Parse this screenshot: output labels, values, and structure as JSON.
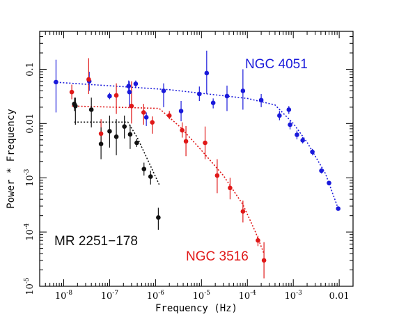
{
  "chart_data": {
    "type": "scatter",
    "title": "",
    "xlabel": "Frequency (Hz)",
    "ylabel": "Power * Frequency",
    "x_scale": "log",
    "y_scale": "log",
    "xlim": [
      3e-09,
      0.02
    ],
    "ylim": [
      1e-05,
      0.5
    ],
    "grid": false,
    "x_ticks": [
      {
        "value": 1e-08,
        "base": "10",
        "exp": "-8"
      },
      {
        "value": 1e-07,
        "base": "10",
        "exp": "-7"
      },
      {
        "value": 1e-06,
        "base": "10",
        "exp": "-6"
      },
      {
        "value": 1e-05,
        "base": "10",
        "exp": "-5"
      },
      {
        "value": 0.0001,
        "base": "10",
        "exp": "-4"
      },
      {
        "value": 0.001,
        "base": "10",
        "exp": "-3"
      },
      {
        "value": 0.01,
        "base": "0.01",
        "exp": ""
      }
    ],
    "y_ticks": [
      {
        "value": 1e-05,
        "base": "10",
        "exp": "-5"
      },
      {
        "value": 0.0001,
        "base": "10",
        "exp": "-4"
      },
      {
        "value": 0.001,
        "base": "10",
        "exp": "-3"
      },
      {
        "value": 0.01,
        "base": "0.01",
        "exp": ""
      },
      {
        "value": 0.1,
        "base": "0.1",
        "exp": ""
      }
    ],
    "series": [
      {
        "name": "NGC 4051",
        "color": "#1a1adb",
        "points": [
          {
            "x": 6.8e-09,
            "y": 0.058,
            "lo": 0.016,
            "hi": 0.15
          },
          {
            "x": 3.6e-08,
            "y": 0.06,
            "lo": 0.04,
            "hi": 0.09
          },
          {
            "x": 1e-07,
            "y": 0.032,
            "lo": 0.028,
            "hi": 0.037
          },
          {
            "x": 2.6e-07,
            "y": 0.049,
            "lo": 0.038,
            "hi": 0.062
          },
          {
            "x": 2.7e-07,
            "y": 0.038,
            "lo": 0.02,
            "hi": 0.06
          },
          {
            "x": 3.7e-07,
            "y": 0.054,
            "lo": 0.045,
            "hi": 0.062
          },
          {
            "x": 6.3e-07,
            "y": 0.013,
            "lo": 0.009,
            "hi": 0.016
          },
          {
            "x": 1.5e-06,
            "y": 0.04,
            "lo": 0.02,
            "hi": 0.055
          },
          {
            "x": 3.6e-06,
            "y": 0.017,
            "lo": 0.011,
            "hi": 0.026
          },
          {
            "x": 9e-06,
            "y": 0.035,
            "lo": 0.026,
            "hi": 0.048
          },
          {
            "x": 1.3e-05,
            "y": 0.085,
            "lo": 0.035,
            "hi": 0.22
          },
          {
            "x": 1.8e-05,
            "y": 0.024,
            "lo": 0.019,
            "hi": 0.029
          },
          {
            "x": 3.6e-05,
            "y": 0.032,
            "lo": 0.017,
            "hi": 0.05
          },
          {
            "x": 8e-05,
            "y": 0.04,
            "lo": 0.018,
            "hi": 0.1
          },
          {
            "x": 0.0002,
            "y": 0.027,
            "lo": 0.02,
            "hi": 0.035
          },
          {
            "x": 0.0005,
            "y": 0.014,
            "lo": 0.0115,
            "hi": 0.017
          },
          {
            "x": 0.0008,
            "y": 0.018,
            "lo": 0.015,
            "hi": 0.021
          },
          {
            "x": 0.00085,
            "y": 0.0095,
            "lo": 0.0078,
            "hi": 0.0115
          },
          {
            "x": 0.0012,
            "y": 0.0062,
            "lo": 0.0051,
            "hi": 0.0074
          },
          {
            "x": 0.0016,
            "y": 0.0049,
            "lo": 0.0043,
            "hi": 0.0056
          },
          {
            "x": 0.0026,
            "y": 0.003,
            "lo": 0.0026,
            "hi": 0.0034
          },
          {
            "x": 0.0041,
            "y": 0.00135,
            "lo": 0.0012,
            "hi": 0.0015
          },
          {
            "x": 0.006,
            "y": 0.0008,
            "lo": 0.00072,
            "hi": 0.00088
          },
          {
            "x": 0.0095,
            "y": 0.00027,
            "lo": 0.00025,
            "hi": 0.00029
          }
        ],
        "model": [
          [
            6e-09,
            0.058
          ],
          [
            2e-06,
            0.042
          ],
          [
            0.0001,
            0.029
          ],
          [
            0.0004,
            0.022
          ],
          [
            0.001,
            0.01
          ],
          [
            0.002,
            0.0045
          ],
          [
            0.005,
            0.0012
          ],
          [
            0.0095,
            0.00027
          ]
        ]
      },
      {
        "name": "NGC 3516",
        "color": "#e01818",
        "points": [
          {
            "x": 1.5e-08,
            "y": 0.038,
            "lo": 0.028,
            "hi": 0.052
          },
          {
            "x": 3.5e-08,
            "y": 0.065,
            "lo": 0.035,
            "hi": 0.16
          },
          {
            "x": 6.5e-08,
            "y": 0.0065,
            "lo": 0.004,
            "hi": 0.012
          },
          {
            "x": 1.4e-07,
            "y": 0.033,
            "lo": 0.015,
            "hi": 0.055
          },
          {
            "x": 3e-07,
            "y": 0.021,
            "lo": 0.01,
            "hi": 0.06
          },
          {
            "x": 5.5e-07,
            "y": 0.016,
            "lo": 0.0095,
            "hi": 0.023
          },
          {
            "x": 8.5e-07,
            "y": 0.0105,
            "lo": 0.0065,
            "hi": 0.0135
          },
          {
            "x": 2e-06,
            "y": 0.014,
            "lo": 0.012,
            "hi": 0.017
          },
          {
            "x": 3.8e-06,
            "y": 0.0075,
            "lo": 0.0055,
            "hi": 0.0105
          },
          {
            "x": 4.6e-06,
            "y": 0.0047,
            "lo": 0.0025,
            "hi": 0.009
          },
          {
            "x": 1.2e-05,
            "y": 0.0044,
            "lo": 0.0022,
            "hi": 0.0088
          },
          {
            "x": 2.2e-05,
            "y": 0.0011,
            "lo": 0.00052,
            "hi": 0.0022
          },
          {
            "x": 4.2e-05,
            "y": 0.00065,
            "lo": 0.0004,
            "hi": 0.001
          },
          {
            "x": 8e-05,
            "y": 0.00024,
            "lo": 0.00015,
            "hi": 0.00038
          },
          {
            "x": 0.00017,
            "y": 7e-05,
            "lo": 5.5e-05,
            "hi": 8.5e-05
          },
          {
            "x": 0.00023,
            "y": 3e-05,
            "lo": 1.4e-05,
            "hi": 6.5e-05
          }
        ],
        "model": [
          [
            1.5e-08,
            0.021
          ],
          [
            1.2e-06,
            0.019
          ],
          [
            3.5e-06,
            0.0085
          ],
          [
            1e-05,
            0.0032
          ],
          [
            3e-05,
            0.0011
          ],
          [
            8e-05,
            0.00032
          ],
          [
            0.00015,
            0.0001
          ],
          [
            0.00023,
            4e-05
          ]
        ]
      },
      {
        "name": "MR 2251-178",
        "color": "#111111",
        "points": [
          {
            "x": 1.7e-08,
            "y": 0.023,
            "lo": 0.017,
            "hi": 0.03
          },
          {
            "x": 1.8e-08,
            "y": 0.021,
            "lo": 0.0095,
            "hi": 0.03
          },
          {
            "x": 4e-08,
            "y": 0.018,
            "lo": 0.0085,
            "hi": 0.03
          },
          {
            "x": 6.5e-08,
            "y": 0.0042,
            "lo": 0.0022,
            "hi": 0.0085
          },
          {
            "x": 1e-07,
            "y": 0.0072,
            "lo": 0.0036,
            "hi": 0.014
          },
          {
            "x": 1.4e-07,
            "y": 0.0057,
            "lo": 0.0026,
            "hi": 0.012
          },
          {
            "x": 2.1e-07,
            "y": 0.0088,
            "lo": 0.0053,
            "hi": 0.014
          },
          {
            "x": 2.8e-07,
            "y": 0.0063,
            "lo": 0.0034,
            "hi": 0.0095
          },
          {
            "x": 3.9e-07,
            "y": 0.0044,
            "lo": 0.0037,
            "hi": 0.0052
          },
          {
            "x": 5.6e-07,
            "y": 0.00145,
            "lo": 0.0011,
            "hi": 0.0019
          },
          {
            "x": 7.8e-07,
            "y": 0.00105,
            "lo": 0.00075,
            "hi": 0.00135
          },
          {
            "x": 1.15e-06,
            "y": 0.000185,
            "lo": 0.00011,
            "hi": 0.00028
          }
        ],
        "model": [
          [
            1.7e-08,
            0.0106
          ],
          [
            2.5e-07,
            0.0106
          ],
          [
            4e-07,
            0.0055
          ],
          [
            7e-07,
            0.002
          ],
          [
            1.2e-06,
            0.00075
          ]
        ]
      }
    ],
    "annotations": [
      {
        "text": "NGC 4051",
        "color": "#1a1adb"
      },
      {
        "text": "NGC 3516",
        "color": "#e01818"
      },
      {
        "text": "MR 2251−178",
        "color": "#111111"
      }
    ]
  }
}
